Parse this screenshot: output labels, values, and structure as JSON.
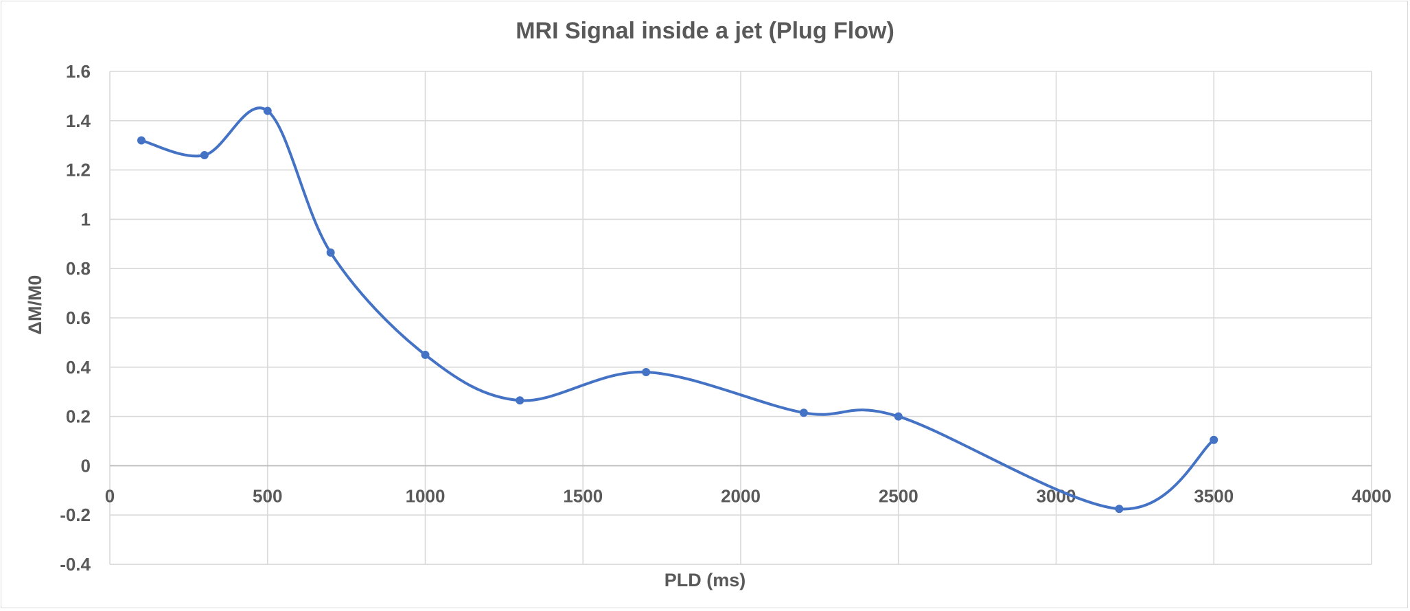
{
  "chart_data": {
    "type": "line",
    "title": "MRI Signal inside a jet (Plug Flow)",
    "xlabel": "PLD (ms)",
    "ylabel": "ΔM/M0",
    "xlim": [
      0,
      4000
    ],
    "ylim": [
      -0.4,
      1.6
    ],
    "x_ticks": [
      "0",
      "500",
      "1000",
      "1500",
      "2000",
      "2500",
      "3000",
      "3500",
      "4000"
    ],
    "y_ticks": [
      "1.6",
      "1.4",
      "1.2",
      "1",
      "0.8",
      "0.6",
      "0.4",
      "0.2",
      "0",
      "-0.2",
      "-0.4"
    ],
    "grid": true,
    "smooth": true,
    "series": [
      {
        "color": "#4472c4",
        "x": [
          100,
          300,
          500,
          700,
          1000,
          1300,
          1700,
          2200,
          2500,
          3200,
          3500
        ],
        "y": [
          1.32,
          1.26,
          1.44,
          0.865,
          0.45,
          0.265,
          0.38,
          0.215,
          0.2,
          -0.175,
          0.105
        ]
      }
    ]
  }
}
